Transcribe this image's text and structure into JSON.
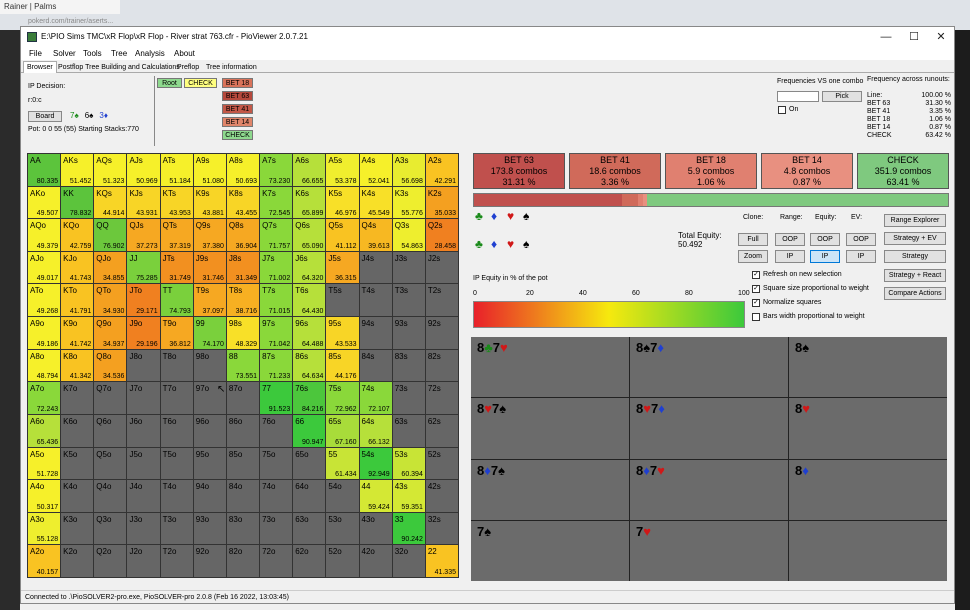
{
  "browser": {
    "tab": "Rainer | Palms",
    "url": "pokerd.com/trainer/aserts..."
  },
  "window": {
    "title": "E:\\PIO Sims TMC\\xR Flop\\xR Flop - River strat 763.cfr - PioViewer 2.0.7.21"
  },
  "menu": [
    "File",
    "Solver",
    "Tools",
    "Tree",
    "Analysis",
    "About"
  ],
  "tabs": [
    "Browser",
    "Postflop Tree Building and Calculations",
    "Preflop",
    "Tree information"
  ],
  "left_info": {
    "decision": "IP Decision:",
    "line": "r:0:c",
    "board_label": "Board",
    "board_cards": [
      {
        "t": "7♠",
        "c": "#1a8a1a"
      },
      {
        "t": "6♠",
        "c": "#000"
      },
      {
        "t": "3♦",
        "c": "#2040d0"
      }
    ],
    "pot": "Pot: 0 0 55 (55) Starting Stacks:770"
  },
  "tree_actions": {
    "root": "Root",
    "check": "CHECK",
    "items": [
      "BET 18",
      "BET 63",
      "BET 41",
      "BET 14",
      "CHECK"
    ]
  },
  "freq_vs": {
    "label": "Frequencies VS one combo",
    "pick": "Pick",
    "on": "On"
  },
  "runouts": {
    "title": "Frequency across runouts:",
    "rows": [
      [
        "Line:",
        "100.00 %"
      ],
      [
        "BET 63",
        "31.30 %"
      ],
      [
        "BET 41",
        "3.35 %"
      ],
      [
        "BET 18",
        "1.06 %"
      ],
      [
        "BET 14",
        "0.87 %"
      ],
      [
        "CHECK",
        "63.42 %"
      ]
    ]
  },
  "grid": [
    [
      [
        "AA",
        "80.335",
        "#5cc43c"
      ],
      [
        "AKs",
        "51.452",
        "#f6f02a"
      ],
      [
        "AQs",
        "51.323",
        "#f6f02a"
      ],
      [
        "AJs",
        "50.969",
        "#f6f02a"
      ],
      [
        "ATs",
        "51.184",
        "#f6f02a"
      ],
      [
        "A9s",
        "51.080",
        "#f6f02a"
      ],
      [
        "A8s",
        "50.693",
        "#f6f02a"
      ],
      [
        "A7s",
        "73.230",
        "#8ad83a"
      ],
      [
        "A6s",
        "66.655",
        "#b6e03a"
      ],
      [
        "A5s",
        "53.378",
        "#f0ee2e"
      ],
      [
        "A4s",
        "52.041",
        "#f6f02a"
      ],
      [
        "A3s",
        "56.698",
        "#e8ec30"
      ],
      [
        "A2s",
        "42.291",
        "#f9c322"
      ]
    ],
    [
      [
        "AKo",
        "49.507",
        "#f6f02a"
      ],
      [
        "KK",
        "78.832",
        "#5cc43c"
      ],
      [
        "KQs",
        "44.914",
        "#f8d526"
      ],
      [
        "KJs",
        "43.931",
        "#f8d526"
      ],
      [
        "KTs",
        "43.953",
        "#f8d526"
      ],
      [
        "K9s",
        "43.881",
        "#f8d526"
      ],
      [
        "K8s",
        "43.455",
        "#f8d526"
      ],
      [
        "K7s",
        "72.545",
        "#8ad83a"
      ],
      [
        "K6s",
        "65.899",
        "#b6e03a"
      ],
      [
        "K5s",
        "46.976",
        "#f8e028"
      ],
      [
        "K4s",
        "45.549",
        "#f8e028"
      ],
      [
        "K3s",
        "55.776",
        "#eeee2e"
      ],
      [
        "K2s",
        "35.033",
        "#f4a020"
      ]
    ],
    [
      [
        "AQo",
        "49.379",
        "#f6f02a"
      ],
      [
        "KQo",
        "42.759",
        "#f9c322"
      ],
      [
        "QQ",
        "76.902",
        "#6cc83c"
      ],
      [
        "QJs",
        "37.273",
        "#f6a822"
      ],
      [
        "QTs",
        "37.319",
        "#f6a822"
      ],
      [
        "Q9s",
        "37.380",
        "#f6a822"
      ],
      [
        "Q8s",
        "36.904",
        "#f6a822"
      ],
      [
        "Q7s",
        "71.757",
        "#8ad83a"
      ],
      [
        "Q6s",
        "65.090",
        "#b6e03a"
      ],
      [
        "Q5s",
        "41.112",
        "#f9c322"
      ],
      [
        "Q4s",
        "39.613",
        "#f7b822"
      ],
      [
        "Q3s",
        "54.863",
        "#eeee2e"
      ],
      [
        "Q2s",
        "28.458",
        "#f08020"
      ]
    ],
    [
      [
        "AJo",
        "49.017",
        "#f6f02a"
      ],
      [
        "KJo",
        "41.743",
        "#f9c322"
      ],
      [
        "QJo",
        "34.855",
        "#f4a020"
      ],
      [
        "JJ",
        "75.285",
        "#7ad03c"
      ],
      [
        "JTs",
        "31.749",
        "#f29020"
      ],
      [
        "J9s",
        "31.746",
        "#f29020"
      ],
      [
        "J8s",
        "31.349",
        "#f29020"
      ],
      [
        "J7s",
        "71.002",
        "#8ad83a"
      ],
      [
        "J6s",
        "64.320",
        "#b6e03a"
      ],
      [
        "J5s",
        "36.315",
        "#f6a822"
      ],
      [
        "J4s",
        "",
        "#666"
      ],
      [
        "J3s",
        "",
        "#666"
      ],
      [
        "J2s",
        "",
        "#666"
      ]
    ],
    [
      [
        "ATo",
        "49.268",
        "#f6f02a"
      ],
      [
        "KTo",
        "41.791",
        "#f9c322"
      ],
      [
        "QTo",
        "34.930",
        "#f4a020"
      ],
      [
        "JTo",
        "29.171",
        "#f08020"
      ],
      [
        "TT",
        "74.793",
        "#7ad03c"
      ],
      [
        "T9s",
        "37.097",
        "#f6a822"
      ],
      [
        "T8s",
        "38.716",
        "#f7b022"
      ],
      [
        "T7s",
        "71.015",
        "#8ad83a"
      ],
      [
        "T6s",
        "64.430",
        "#b6e03a"
      ],
      [
        "T5s",
        "",
        "#666"
      ],
      [
        "T4s",
        "",
        "#666"
      ],
      [
        "T3s",
        "",
        "#666"
      ],
      [
        "T2s",
        "",
        "#666"
      ]
    ],
    [
      [
        "A9o",
        "49.186",
        "#f6f02a"
      ],
      [
        "K9o",
        "41.742",
        "#f9c322"
      ],
      [
        "Q9o",
        "34.937",
        "#f4a020"
      ],
      [
        "J9o",
        "29.196",
        "#f08020"
      ],
      [
        "T9o",
        "36.812",
        "#f6a822"
      ],
      [
        "99",
        "74.170",
        "#7ad03c"
      ],
      [
        "98s",
        "48.329",
        "#f8e028"
      ],
      [
        "97s",
        "71.042",
        "#8ad83a"
      ],
      [
        "96s",
        "64.488",
        "#b6e03a"
      ],
      [
        "95s",
        "43.533",
        "#f8d526"
      ],
      [
        "94s",
        "",
        "#666"
      ],
      [
        "93s",
        "",
        "#666"
      ],
      [
        "92s",
        "",
        "#666"
      ]
    ],
    [
      [
        "A8o",
        "48.794",
        "#f6f02a"
      ],
      [
        "K8o",
        "41.342",
        "#f9c322"
      ],
      [
        "Q8o",
        "34.536",
        "#f4a020"
      ],
      [
        "J8o",
        "",
        "#666"
      ],
      [
        "T8o",
        "",
        "#666"
      ],
      [
        "98o",
        "",
        "#666"
      ],
      [
        "88",
        "73.551",
        "#8ad83a"
      ],
      [
        "87s",
        "71.233",
        "#8ad83a"
      ],
      [
        "86s",
        "64.634",
        "#b6e03a"
      ],
      [
        "85s",
        "44.176",
        "#f8d526"
      ],
      [
        "84s",
        "",
        "#666"
      ],
      [
        "83s",
        "",
        "#666"
      ],
      [
        "82s",
        "",
        "#666"
      ]
    ],
    [
      [
        "A7o",
        "72.243",
        "#8ad83a"
      ],
      [
        "K7o",
        "",
        "#666"
      ],
      [
        "Q7o",
        "",
        "#666"
      ],
      [
        "J7o",
        "",
        "#666"
      ],
      [
        "T7o",
        "",
        "#666"
      ],
      [
        "97o",
        "",
        "#666"
      ],
      [
        "87o",
        "",
        "#666"
      ],
      [
        "77",
        "91.523",
        "#3cc93c"
      ],
      [
        "76s",
        "84.216",
        "#4cc63c"
      ],
      [
        "75s",
        "72.962",
        "#8ad83a"
      ],
      [
        "74s",
        "72.107",
        "#8ad83a"
      ],
      [
        "73s",
        "",
        "#666"
      ],
      [
        "72s",
        "",
        "#666"
      ]
    ],
    [
      [
        "A6o",
        "65.436",
        "#b6e03a"
      ],
      [
        "K6o",
        "",
        "#666"
      ],
      [
        "Q6o",
        "",
        "#666"
      ],
      [
        "J6o",
        "",
        "#666"
      ],
      [
        "T6o",
        "",
        "#666"
      ],
      [
        "96o",
        "",
        "#666"
      ],
      [
        "86o",
        "",
        "#666"
      ],
      [
        "76o",
        "",
        "#666"
      ],
      [
        "66",
        "90.947",
        "#3cc93c"
      ],
      [
        "65s",
        "67.160",
        "#a8dc3a"
      ],
      [
        "64s",
        "66.132",
        "#b6e03a"
      ],
      [
        "63s",
        "",
        "#666"
      ],
      [
        "62s",
        "",
        "#666"
      ]
    ],
    [
      [
        "A5o",
        "51.728",
        "#f6f02a"
      ],
      [
        "K5o",
        "",
        "#666"
      ],
      [
        "Q5o",
        "",
        "#666"
      ],
      [
        "J5o",
        "",
        "#666"
      ],
      [
        "T5o",
        "",
        "#666"
      ],
      [
        "95o",
        "",
        "#666"
      ],
      [
        "85o",
        "",
        "#666"
      ],
      [
        "75o",
        "",
        "#666"
      ],
      [
        "65o",
        "",
        "#666"
      ],
      [
        "55",
        "61.434",
        "#c8e436"
      ],
      [
        "54s",
        "92.949",
        "#3cc93c"
      ],
      [
        "53s",
        "60.394",
        "#c8e436"
      ],
      [
        "52s",
        "",
        "#666"
      ]
    ],
    [
      [
        "A4o",
        "50.317",
        "#f6f02a"
      ],
      [
        "K4o",
        "",
        "#666"
      ],
      [
        "Q4o",
        "",
        "#666"
      ],
      [
        "J4o",
        "",
        "#666"
      ],
      [
        "T4o",
        "",
        "#666"
      ],
      [
        "94o",
        "",
        "#666"
      ],
      [
        "84o",
        "",
        "#666"
      ],
      [
        "74o",
        "",
        "#666"
      ],
      [
        "64o",
        "",
        "#666"
      ],
      [
        "54o",
        "",
        "#666"
      ],
      [
        "44",
        "59.424",
        "#d4e834"
      ],
      [
        "43s",
        "59.351",
        "#d4e834"
      ],
      [
        "42s",
        "",
        "#666"
      ]
    ],
    [
      [
        "A3o",
        "55.128",
        "#eeee2e"
      ],
      [
        "K3o",
        "",
        "#666"
      ],
      [
        "Q3o",
        "",
        "#666"
      ],
      [
        "J3o",
        "",
        "#666"
      ],
      [
        "T3o",
        "",
        "#666"
      ],
      [
        "93o",
        "",
        "#666"
      ],
      [
        "83o",
        "",
        "#666"
      ],
      [
        "73o",
        "",
        "#666"
      ],
      [
        "63o",
        "",
        "#666"
      ],
      [
        "53o",
        "",
        "#666"
      ],
      [
        "43o",
        "",
        "#666"
      ],
      [
        "33",
        "90.242",
        "#3cc93c"
      ],
      [
        "32s",
        "",
        "#666"
      ]
    ],
    [
      [
        "A2o",
        "40.157",
        "#f9c322"
      ],
      [
        "K2o",
        "",
        "#666"
      ],
      [
        "Q2o",
        "",
        "#666"
      ],
      [
        "J2o",
        "",
        "#666"
      ],
      [
        "T2o",
        "",
        "#666"
      ],
      [
        "92o",
        "",
        "#666"
      ],
      [
        "82o",
        "",
        "#666"
      ],
      [
        "72o",
        "",
        "#666"
      ],
      [
        "62o",
        "",
        "#666"
      ],
      [
        "52o",
        "",
        "#666"
      ],
      [
        "42o",
        "",
        "#666"
      ],
      [
        "32o",
        "",
        "#666"
      ],
      [
        "22",
        "41.335",
        "#f9c322"
      ]
    ]
  ],
  "actions": [
    {
      "name": "BET 63",
      "combos": "173.8 combos",
      "pct": "31.31 %",
      "color": "#c0504d",
      "freq": 31.31
    },
    {
      "name": "BET 41",
      "combos": "18.6 combos",
      "pct": "3.36 %",
      "color": "#d06a5a",
      "freq": 3.36
    },
    {
      "name": "BET 18",
      "combos": "5.9 combos",
      "pct": "1.06 %",
      "color": "#e08070",
      "freq": 1.06
    },
    {
      "name": "BET 14",
      "combos": "4.8 combos",
      "pct": "0.87 %",
      "color": "#e89080",
      "freq": 0.87
    },
    {
      "name": "CHECK",
      "combos": "351.9 combos",
      "pct": "63.41 %",
      "color": "#7fc97f",
      "freq": 63.41
    }
  ],
  "equity": {
    "label": "Total Equity:",
    "value": "50.492",
    "pct_label": "IP Equity in % of the pot",
    "ticks": [
      "0",
      "20",
      "40",
      "60",
      "80",
      "100"
    ]
  },
  "controls": {
    "clone": "Clone:",
    "range": "Range:",
    "equity": "Equity:",
    "ev": "EV:",
    "full": "Full",
    "zoom": "Zoom",
    "oop": "OOP",
    "ip": "IP",
    "range_explorer": "Range Explorer",
    "strategy_ev": "Strategy + EV",
    "strategy": "Strategy",
    "strategy_react": "Strategy + React",
    "compare": "Compare Actions"
  },
  "checkboxes": [
    "Refresh on new selection",
    "Square size proportional to weight",
    "Normalize squares",
    "Bars width proportional to weight"
  ],
  "suits": [
    {
      "t": "♣",
      "c": "#1a8a1a"
    },
    {
      "t": "♦",
      "c": "#2040d0"
    },
    {
      "t": "♥",
      "c": "#d01818"
    },
    {
      "t": "♠",
      "c": "#000"
    }
  ],
  "board_grid": [
    [
      [
        "8",
        "#000",
        "♣",
        "#1a8a1a"
      ],
      [
        "7",
        "#000",
        "♥",
        "#d01818"
      ]
    ],
    [
      [
        "8",
        "#000",
        "♠",
        "#000"
      ],
      [
        "7",
        "#000",
        "♦",
        "#2040d0"
      ]
    ],
    [
      [
        "8",
        "#000",
        "♠",
        "#000"
      ],
      [
        "",
        "",
        "",
        " "
      ]
    ],
    [
      [
        "8",
        "#000",
        "♥",
        "#d01818"
      ],
      [
        "7",
        "#000",
        "♠",
        "#000"
      ]
    ],
    [
      [
        "8",
        "#000",
        "♥",
        "#d01818"
      ],
      [
        "7",
        "#000",
        "♦",
        "#2040d0"
      ]
    ],
    [
      [
        "8",
        "#000",
        "♥",
        "#d01818"
      ],
      [
        "",
        "",
        "",
        " "
      ]
    ],
    [
      [
        "8",
        "#000",
        "♦",
        "#2040d0"
      ],
      [
        "7",
        "#000",
        "♠",
        "#000"
      ]
    ],
    [
      [
        "8",
        "#000",
        "♦",
        "#2040d0"
      ],
      [
        "7",
        "#000",
        "♥",
        "#d01818"
      ]
    ],
    [
      [
        "8",
        "#000",
        "♦",
        "#2040d0"
      ],
      [
        "",
        "",
        "",
        " "
      ]
    ],
    [
      [
        "",
        "",
        "",
        " "
      ],
      [
        "7",
        "#000",
        "♠",
        "#000"
      ]
    ],
    [
      [
        "",
        "",
        "",
        " "
      ],
      [
        "7",
        "#000",
        "♥",
        "#d01818"
      ]
    ],
    [
      [
        "",
        "",
        "",
        " "
      ],
      [
        "",
        "",
        "",
        " "
      ]
    ]
  ],
  "status": "Connected to .\\PioSOLVER2-pro.exe, PioSOLVER-pro 2.0.8 (Feb 16 2022, 13:03:45)"
}
